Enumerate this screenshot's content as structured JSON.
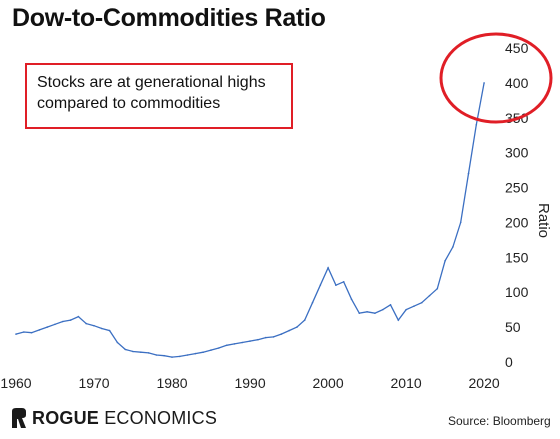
{
  "chart_data": {
    "type": "line",
    "title": "Dow-to-Commodities Ratio",
    "ylabel": "Ratio",
    "xlabel": "",
    "xlim": [
      1960,
      2020.5
    ],
    "ylim": [
      0,
      450
    ],
    "xticks": [
      1960,
      1970,
      1980,
      1990,
      2000,
      2010,
      2020
    ],
    "yticks": [
      0,
      50,
      100,
      150,
      200,
      250,
      300,
      350,
      400,
      450
    ],
    "grid": false,
    "series": [
      {
        "color": "#3b6fc2",
        "x": [
          1960,
          1961,
          1962,
          1963,
          1964,
          1965,
          1966,
          1967,
          1968,
          1969,
          1970,
          1971,
          1972,
          1973,
          1974,
          1975,
          1976,
          1977,
          1978,
          1979,
          1980,
          1981,
          1982,
          1983,
          1984,
          1985,
          1986,
          1987,
          1988,
          1989,
          1990,
          1991,
          1992,
          1993,
          1994,
          1995,
          1996,
          1997,
          1998,
          1999,
          2000,
          2001,
          2002,
          2003,
          2004,
          2005,
          2006,
          2007,
          2008,
          2009,
          2010,
          2011,
          2012,
          2013,
          2014,
          2015,
          2016,
          2017,
          2018,
          2019,
          2020
        ],
        "values": [
          40,
          43,
          42,
          46,
          50,
          54,
          58,
          60,
          65,
          55,
          52,
          48,
          45,
          28,
          18,
          15,
          14,
          13,
          10,
          9,
          7,
          8,
          10,
          12,
          14,
          17,
          20,
          24,
          26,
          28,
          30,
          32,
          35,
          36,
          40,
          45,
          50,
          60,
          85,
          110,
          135,
          110,
          115,
          90,
          70,
          72,
          70,
          75,
          82,
          60,
          75,
          80,
          85,
          95,
          105,
          145,
          165,
          200,
          270,
          340,
          400
        ]
      }
    ],
    "annotations": [
      "Stocks are at generational highs compared to commodities"
    ],
    "source": "Source: Bloomberg",
    "brand": {
      "bold": "ROGUE",
      "rest": " ECONOMICS"
    },
    "highlight_color": "#e01e26"
  }
}
